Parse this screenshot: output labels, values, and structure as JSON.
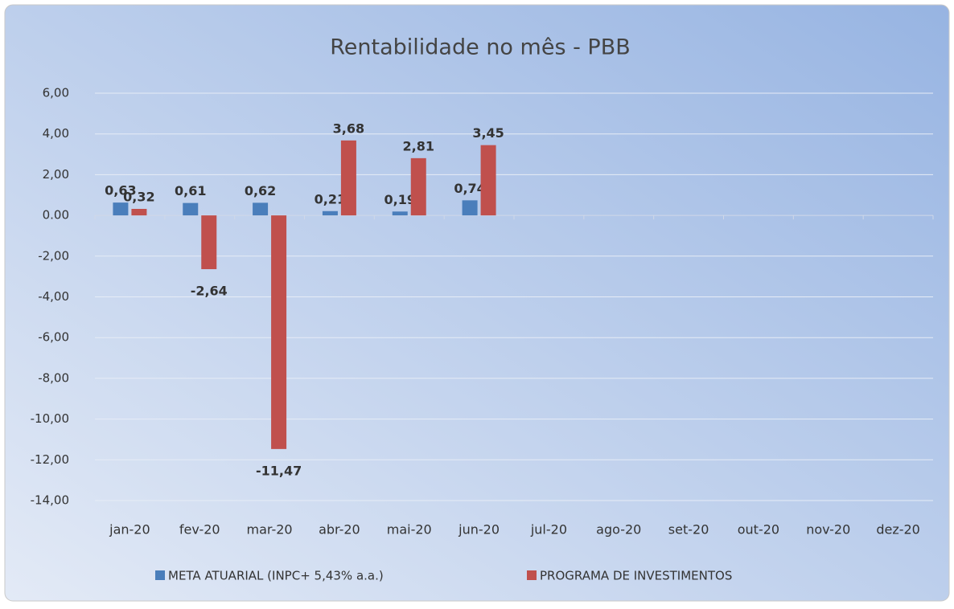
{
  "chart_data": {
    "type": "bar",
    "title": "Rentabilidade no mês - PBB",
    "categories": [
      "jan-20",
      "fev-20",
      "mar-20",
      "abr-20",
      "mai-20",
      "jun-20",
      "jul-20",
      "ago-20",
      "set-20",
      "out-20",
      "nov-20",
      "dez-20"
    ],
    "series": [
      {
        "name": "META ATUARIAL (INPC+ 5,43% a.a.)",
        "color": "#4a7ebb",
        "values": [
          0.63,
          0.61,
          0.62,
          0.21,
          0.19,
          0.74,
          null,
          null,
          null,
          null,
          null,
          null
        ],
        "value_labels": [
          "0,63",
          "0,61",
          "0,62",
          "0,21",
          "0,19",
          "0,74",
          null,
          null,
          null,
          null,
          null,
          null
        ]
      },
      {
        "name": "PROGRAMA DE INVESTIMENTOS",
        "color": "#c0504d",
        "values": [
          0.32,
          -2.64,
          -11.47,
          3.68,
          2.81,
          3.45,
          null,
          null,
          null,
          null,
          null,
          null
        ],
        "value_labels": [
          "0,32",
          "-2,64",
          "-11,47",
          "3,68",
          "2,81",
          "3,45",
          null,
          null,
          null,
          null,
          null,
          null
        ]
      }
    ],
    "ylim": [
      -14,
      6
    ],
    "yticks": [
      {
        "value": -14,
        "label": "-14,00"
      },
      {
        "value": -12,
        "label": "-12,00"
      },
      {
        "value": -10,
        "label": "-10,00"
      },
      {
        "value": -8,
        "label": "-8,00"
      },
      {
        "value": -6,
        "label": "-6,00"
      },
      {
        "value": -4,
        "label": "-4,00"
      },
      {
        "value": -2,
        "label": "-2,00"
      },
      {
        "value": 0,
        "label": "0.00"
      },
      {
        "value": 2,
        "label": "2,00"
      },
      {
        "value": 4,
        "label": "4,00"
      },
      {
        "value": 6,
        "label": "6,00"
      }
    ],
    "grid": true,
    "legend": "bottom"
  }
}
